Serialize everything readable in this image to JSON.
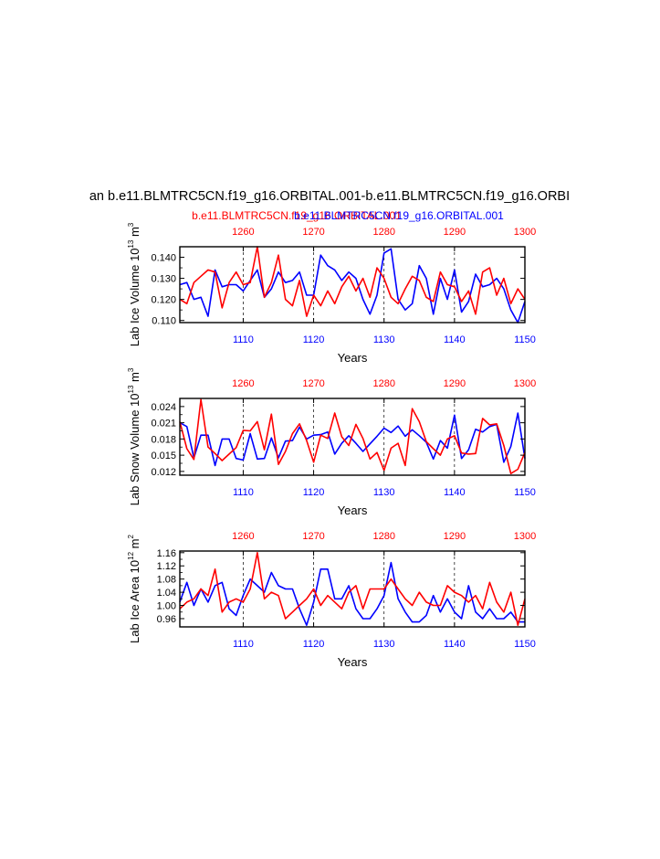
{
  "main_title": "an b.e11.BLMTRC5CN.f19_g16.ORBITAL.001-b.e11.BLMTRC5CN.f19_g16.ORBI",
  "legend": {
    "red_label": "b.e11.BLMTRC5CN.f19_g16.ORBITAL.001",
    "blue_label": "b.e11.BLMTRC5CN.f19_g16.ORBITAL.001",
    "red_color": "#ff0000",
    "blue_color": "#0000ff"
  },
  "chart_data": [
    {
      "type": "line",
      "ylabel": "Lab Ice Volume 10^13 m^3",
      "ylabel_base": "Lab Ice Volume 10",
      "ylabel_exp": "13",
      "ylabel_unit": "m",
      "ylabel_unit_exp": "3",
      "xlabel": "Years",
      "ylim": [
        0.109,
        0.145
      ],
      "yticks": [
        0.11,
        0.12,
        0.13,
        0.14
      ],
      "ytick_labels": [
        "0.110",
        "0.120",
        "0.130",
        "0.140"
      ],
      "x_bottom": {
        "range": [
          1101,
          1150
        ],
        "ticks": [
          1110,
          1120,
          1130,
          1140,
          1150
        ],
        "color": "#0000ff"
      },
      "x_top": {
        "range": [
          1251,
          1300
        ],
        "ticks": [
          1260,
          1270,
          1280,
          1290,
          1300
        ],
        "color": "#ff0000"
      },
      "series": [
        {
          "name": "blue",
          "color": "#0000ff",
          "values": [
            0.127,
            0.128,
            0.12,
            0.121,
            0.112,
            0.134,
            0.126,
            0.127,
            0.127,
            0.124,
            0.129,
            0.134,
            0.121,
            0.125,
            0.133,
            0.128,
            0.129,
            0.133,
            0.122,
            0.122,
            0.141,
            0.136,
            0.134,
            0.129,
            0.133,
            0.13,
            0.12,
            0.113,
            0.122,
            0.142,
            0.144,
            0.12,
            0.115,
            0.118,
            0.136,
            0.13,
            0.113,
            0.13,
            0.12,
            0.134,
            0.114,
            0.119,
            0.132,
            0.126,
            0.127,
            0.13,
            0.125,
            0.115,
            0.109,
            0.119
          ]
        },
        {
          "name": "red",
          "color": "#ff0000",
          "values": [
            0.12,
            0.118,
            0.128,
            0.131,
            0.134,
            0.133,
            0.116,
            0.128,
            0.133,
            0.127,
            0.128,
            0.145,
            0.121,
            0.128,
            0.141,
            0.12,
            0.117,
            0.129,
            0.112,
            0.122,
            0.117,
            0.124,
            0.118,
            0.126,
            0.131,
            0.124,
            0.13,
            0.121,
            0.135,
            0.13,
            0.121,
            0.118,
            0.125,
            0.131,
            0.129,
            0.121,
            0.119,
            0.133,
            0.127,
            0.126,
            0.119,
            0.124,
            0.113,
            0.133,
            0.135,
            0.122,
            0.13,
            0.118,
            0.125,
            0.12
          ]
        }
      ]
    },
    {
      "type": "line",
      "ylabel": "Lab Snow Volume 10^13 m^3",
      "ylabel_base": "Lab Snow Volume 10",
      "ylabel_exp": "13",
      "ylabel_unit": "m",
      "ylabel_unit_exp": "3",
      "xlabel": "Years",
      "ylim": [
        0.0113,
        0.0255
      ],
      "yticks": [
        0.012,
        0.015,
        0.018,
        0.021,
        0.024
      ],
      "ytick_labels": [
        "0.012",
        "0.015",
        "0.018",
        "0.021",
        "0.024"
      ],
      "x_bottom": {
        "range": [
          1101,
          1150
        ],
        "ticks": [
          1110,
          1120,
          1130,
          1140,
          1150
        ],
        "color": "#0000ff"
      },
      "x_top": {
        "range": [
          1251,
          1300
        ],
        "ticks": [
          1260,
          1270,
          1280,
          1290,
          1300
        ],
        "color": "#ff0000"
      },
      "series": [
        {
          "name": "blue",
          "color": "#0000ff",
          "values": [
            0.021,
            0.0203,
            0.0145,
            0.0187,
            0.0187,
            0.0131,
            0.018,
            0.018,
            0.0144,
            0.0141,
            0.019,
            0.0143,
            0.0144,
            0.0182,
            0.0145,
            0.0176,
            0.0177,
            0.0202,
            0.018,
            0.0187,
            0.0188,
            0.0193,
            0.0152,
            0.0172,
            0.0186,
            0.0172,
            0.0157,
            0.0171,
            0.0185,
            0.02,
            0.0192,
            0.0204,
            0.0185,
            0.0197,
            0.0186,
            0.0174,
            0.0143,
            0.0177,
            0.0163,
            0.0224,
            0.0144,
            0.016,
            0.0198,
            0.0193,
            0.0203,
            0.0207,
            0.0137,
            0.0166,
            0.0228,
            0.0144
          ]
        },
        {
          "name": "red",
          "color": "#ff0000",
          "values": [
            0.0212,
            0.0162,
            0.0142,
            0.0253,
            0.0165,
            0.0153,
            0.014,
            0.0152,
            0.0164,
            0.0196,
            0.0195,
            0.0212,
            0.016,
            0.0226,
            0.0133,
            0.0157,
            0.019,
            0.0208,
            0.0177,
            0.0137,
            0.0187,
            0.0181,
            0.0228,
            0.0184,
            0.0168,
            0.0207,
            0.0181,
            0.0143,
            0.0155,
            0.0122,
            0.0163,
            0.0172,
            0.0131,
            0.0236,
            0.0212,
            0.0175,
            0.0162,
            0.015,
            0.018,
            0.0186,
            0.0154,
            0.0152,
            0.0153,
            0.0218,
            0.0206,
            0.0208,
            0.0168,
            0.0116,
            0.0124,
            0.0155
          ]
        }
      ]
    },
    {
      "type": "line",
      "ylabel": "Lab Ice Area 10^12 m^2",
      "ylabel_base": "Lab Ice Area 10",
      "ylabel_exp": "12",
      "ylabel_unit": "m",
      "ylabel_unit_exp": "2",
      "xlabel": "Years",
      "ylim": [
        0.935,
        1.165
      ],
      "yticks": [
        0.96,
        1.0,
        1.04,
        1.08,
        1.12,
        1.16
      ],
      "ytick_labels": [
        "0.96",
        "1.00",
        "1.04",
        "1.08",
        "1.12",
        "1.16"
      ],
      "x_bottom": {
        "range": [
          1101,
          1150
        ],
        "ticks": [
          1110,
          1120,
          1130,
          1140,
          1150
        ],
        "color": "#0000ff"
      },
      "x_top": {
        "range": [
          1251,
          1300
        ],
        "ticks": [
          1260,
          1270,
          1280,
          1290,
          1300
        ],
        "color": "#ff0000"
      },
      "series": [
        {
          "name": "blue",
          "color": "#0000ff",
          "values": [
            1.01,
            1.07,
            1.0,
            1.05,
            1.01,
            1.06,
            1.07,
            0.99,
            0.97,
            1.03,
            1.08,
            1.06,
            1.04,
            1.1,
            1.06,
            1.05,
            1.05,
            0.99,
            0.94,
            1.01,
            1.11,
            1.11,
            1.02,
            1.02,
            1.06,
            0.99,
            0.96,
            0.96,
            0.99,
            1.03,
            1.13,
            1.02,
            0.98,
            0.95,
            0.95,
            0.97,
            1.03,
            0.98,
            1.02,
            0.98,
            0.96,
            1.06,
            0.98,
            0.96,
            0.99,
            0.96,
            0.96,
            0.98,
            0.95,
            0.95
          ]
        },
        {
          "name": "red",
          "color": "#ff0000",
          "values": [
            0.99,
            1.01,
            1.02,
            1.05,
            1.03,
            1.11,
            0.98,
            1.01,
            1.02,
            1.01,
            1.05,
            1.16,
            1.02,
            1.04,
            1.03,
            0.96,
            0.98,
            1.0,
            1.02,
            1.05,
            1.0,
            1.03,
            1.01,
            0.99,
            1.04,
            1.06,
            0.99,
            1.05,
            1.05,
            1.05,
            1.08,
            1.05,
            1.02,
            1.0,
            1.04,
            1.01,
            1.0,
            1.0,
            1.06,
            1.04,
            1.03,
            1.01,
            1.03,
            0.99,
            1.07,
            1.01,
            0.98,
            1.04,
            0.94,
            1.02
          ]
        }
      ]
    }
  ]
}
